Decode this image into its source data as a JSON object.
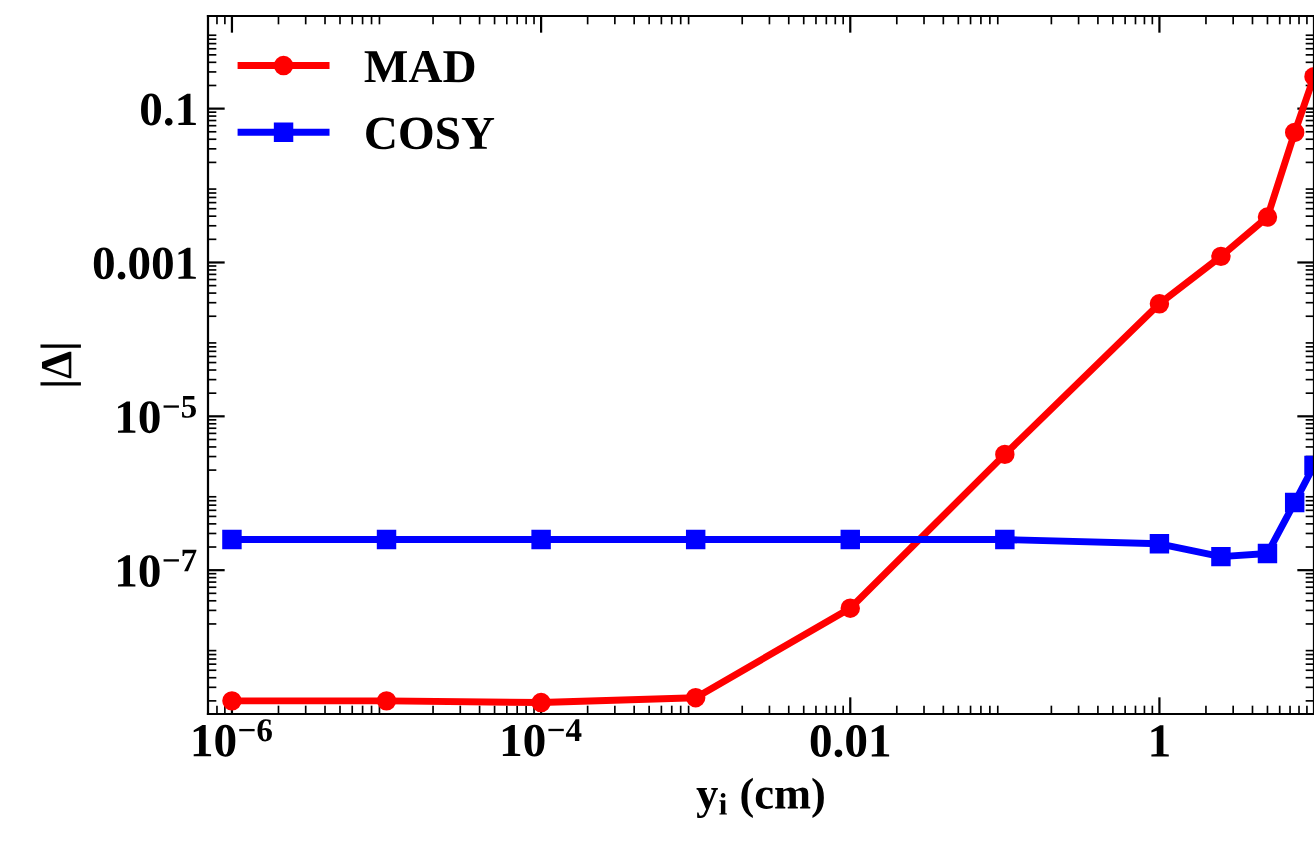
{
  "chart_data": {
    "type": "line",
    "xlabel": "y$_{i}$ (cm)",
    "ylabel": "|Δ|",
    "log": "xy",
    "legend": "top left",
    "grid": false,
    "line_style": "solid",
    "xlim": [
      7e-07,
      10
    ],
    "ylim": [
      1.35e-09,
      1.6
    ],
    "xticks": [
      {
        "value": 1e-06,
        "label": "10$^{−6}$"
      },
      {
        "value": 0.0001,
        "label": "10$^{−4}$"
      },
      0.01,
      1
    ],
    "yticks": [
      {
        "value": 1e-07,
        "label": "10$^{−7}$"
      },
      {
        "value": 1e-05,
        "label": "10$^{−5}$"
      },
      0.001,
      0.1
    ],
    "series": [
      {
        "name": "MAD",
        "color": "#ff0000",
        "marker": "circle",
        "x": [
          1e-06,
          1e-05,
          0.0001,
          0.001,
          0.01,
          0.1,
          1,
          2.5,
          5,
          7.5,
          10
        ],
        "values": [
          2e-09,
          2e-09,
          1.9e-09,
          2.2e-09,
          3.2e-08,
          3.2e-06,
          0.00029,
          0.0012,
          0.0039,
          0.049,
          0.26
        ]
      },
      {
        "name": "COSY",
        "color": "#0000ff",
        "marker": "square",
        "x": [
          1e-06,
          1e-05,
          0.0001,
          0.001,
          0.01,
          0.1,
          1,
          2.5,
          5,
          7.5,
          10
        ],
        "values": [
          2.5e-07,
          2.5e-07,
          2.5e-07,
          2.5e-07,
          2.5e-07,
          2.5e-07,
          2.2e-07,
          1.5e-07,
          1.65e-07,
          7.6e-07,
          2.3e-06
        ]
      }
    ]
  }
}
